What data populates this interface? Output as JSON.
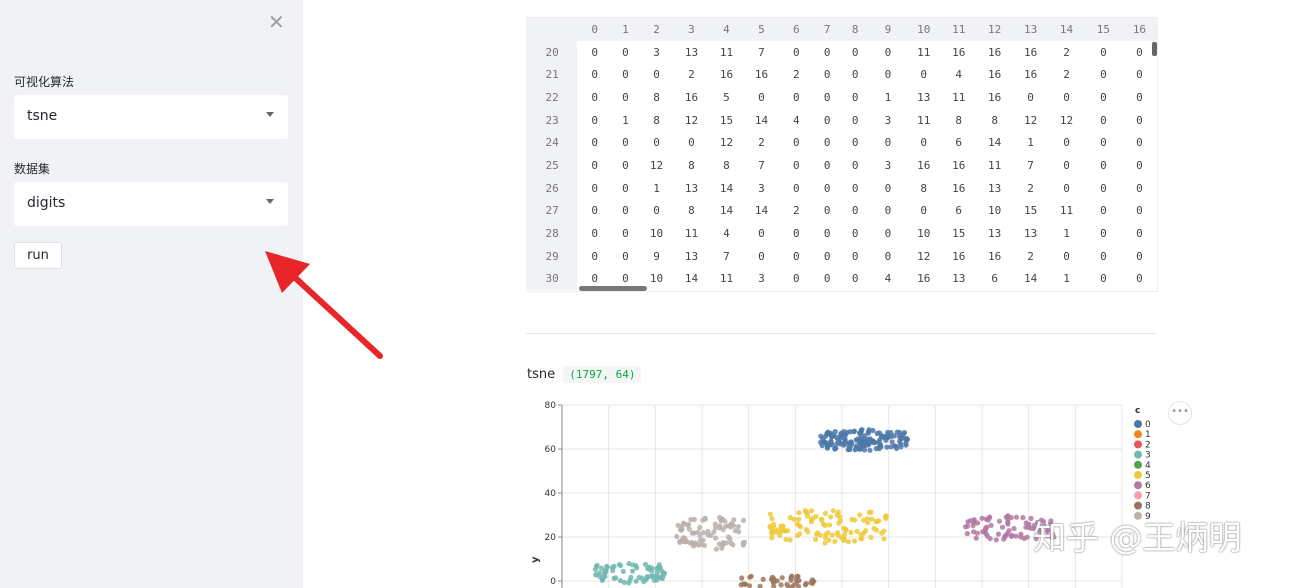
{
  "sidebar": {
    "close_icon": "close-icon",
    "algo_label": "可视化算法",
    "algo_value": "tsne",
    "dataset_label": "数据集",
    "dataset_value": "digits",
    "run_label": "run"
  },
  "table": {
    "columns": [
      "0",
      "1",
      "2",
      "3",
      "4",
      "5",
      "6",
      "7",
      "8",
      "9",
      "10",
      "11",
      "12",
      "13",
      "14",
      "15",
      "16"
    ],
    "rows": [
      {
        "index": "20",
        "cells": [
          "0",
          "0",
          "3",
          "13",
          "11",
          "7",
          "0",
          "0",
          "0",
          "0",
          "11",
          "16",
          "16",
          "16",
          "2",
          "0",
          "0"
        ]
      },
      {
        "index": "21",
        "cells": [
          "0",
          "0",
          "0",
          "2",
          "16",
          "16",
          "2",
          "0",
          "0",
          "0",
          "0",
          "4",
          "16",
          "16",
          "2",
          "0",
          "0"
        ]
      },
      {
        "index": "22",
        "cells": [
          "0",
          "0",
          "8",
          "16",
          "5",
          "0",
          "0",
          "0",
          "0",
          "1",
          "13",
          "11",
          "16",
          "0",
          "0",
          "0",
          "0"
        ]
      },
      {
        "index": "23",
        "cells": [
          "0",
          "1",
          "8",
          "12",
          "15",
          "14",
          "4",
          "0",
          "0",
          "3",
          "11",
          "8",
          "8",
          "12",
          "12",
          "0",
          "0"
        ]
      },
      {
        "index": "24",
        "cells": [
          "0",
          "0",
          "0",
          "0",
          "12",
          "2",
          "0",
          "0",
          "0",
          "0",
          "0",
          "6",
          "14",
          "1",
          "0",
          "0",
          "0"
        ]
      },
      {
        "index": "25",
        "cells": [
          "0",
          "0",
          "12",
          "8",
          "8",
          "7",
          "0",
          "0",
          "0",
          "3",
          "16",
          "16",
          "11",
          "7",
          "0",
          "0",
          "0"
        ]
      },
      {
        "index": "26",
        "cells": [
          "0",
          "0",
          "1",
          "13",
          "14",
          "3",
          "0",
          "0",
          "0",
          "0",
          "8",
          "16",
          "13",
          "2",
          "0",
          "0",
          "0"
        ]
      },
      {
        "index": "27",
        "cells": [
          "0",
          "0",
          "0",
          "8",
          "14",
          "14",
          "2",
          "0",
          "0",
          "0",
          "0",
          "6",
          "10",
          "15",
          "11",
          "0",
          "0"
        ]
      },
      {
        "index": "28",
        "cells": [
          "0",
          "0",
          "10",
          "11",
          "4",
          "0",
          "0",
          "0",
          "0",
          "0",
          "10",
          "15",
          "13",
          "13",
          "1",
          "0",
          "0"
        ]
      },
      {
        "index": "29",
        "cells": [
          "0",
          "0",
          "9",
          "13",
          "7",
          "0",
          "0",
          "0",
          "0",
          "0",
          "12",
          "16",
          "16",
          "2",
          "0",
          "0",
          "0"
        ]
      },
      {
        "index": "30",
        "cells": [
          "0",
          "0",
          "10",
          "14",
          "11",
          "3",
          "0",
          "0",
          "0",
          "4",
          "16",
          "13",
          "6",
          "14",
          "1",
          "0",
          "0"
        ]
      }
    ]
  },
  "result": {
    "name": "tsne",
    "shape": "(1797, 64)"
  },
  "chart_data": {
    "type": "scatter",
    "ylabel": "y",
    "yticks": [
      "80",
      "60",
      "40",
      "20",
      "0"
    ],
    "ylim": [
      0,
      80
    ],
    "legend_title": "c",
    "legend_placement": "right",
    "legend": [
      "0",
      "1",
      "2",
      "3",
      "4",
      "5",
      "6",
      "7",
      "8",
      "9"
    ],
    "colors": [
      "#4c78a8",
      "#f58518",
      "#e45756",
      "#72b7b2",
      "#54a24b",
      "#eeca3b",
      "#b279a2",
      "#ff9da6",
      "#9d755d",
      "#bab0ac"
    ],
    "grid": true,
    "clusters": [
      {
        "c": "0",
        "center_y": 64,
        "spread_y": 5,
        "n": 150
      },
      {
        "c": "5",
        "center_y": 25,
        "spread_y": 8,
        "n": 110
      },
      {
        "c": "9",
        "center_y": 22,
        "spread_y": 8,
        "n": 80
      },
      {
        "c": "6",
        "center_y": 24,
        "spread_y": 6,
        "n": 80
      },
      {
        "c": "3",
        "center_y": 4,
        "spread_y": 5,
        "n": 70
      },
      {
        "c": "8",
        "center_y": 0,
        "spread_y": 3,
        "n": 40
      }
    ]
  },
  "watermark": "知乎 @王炳明"
}
